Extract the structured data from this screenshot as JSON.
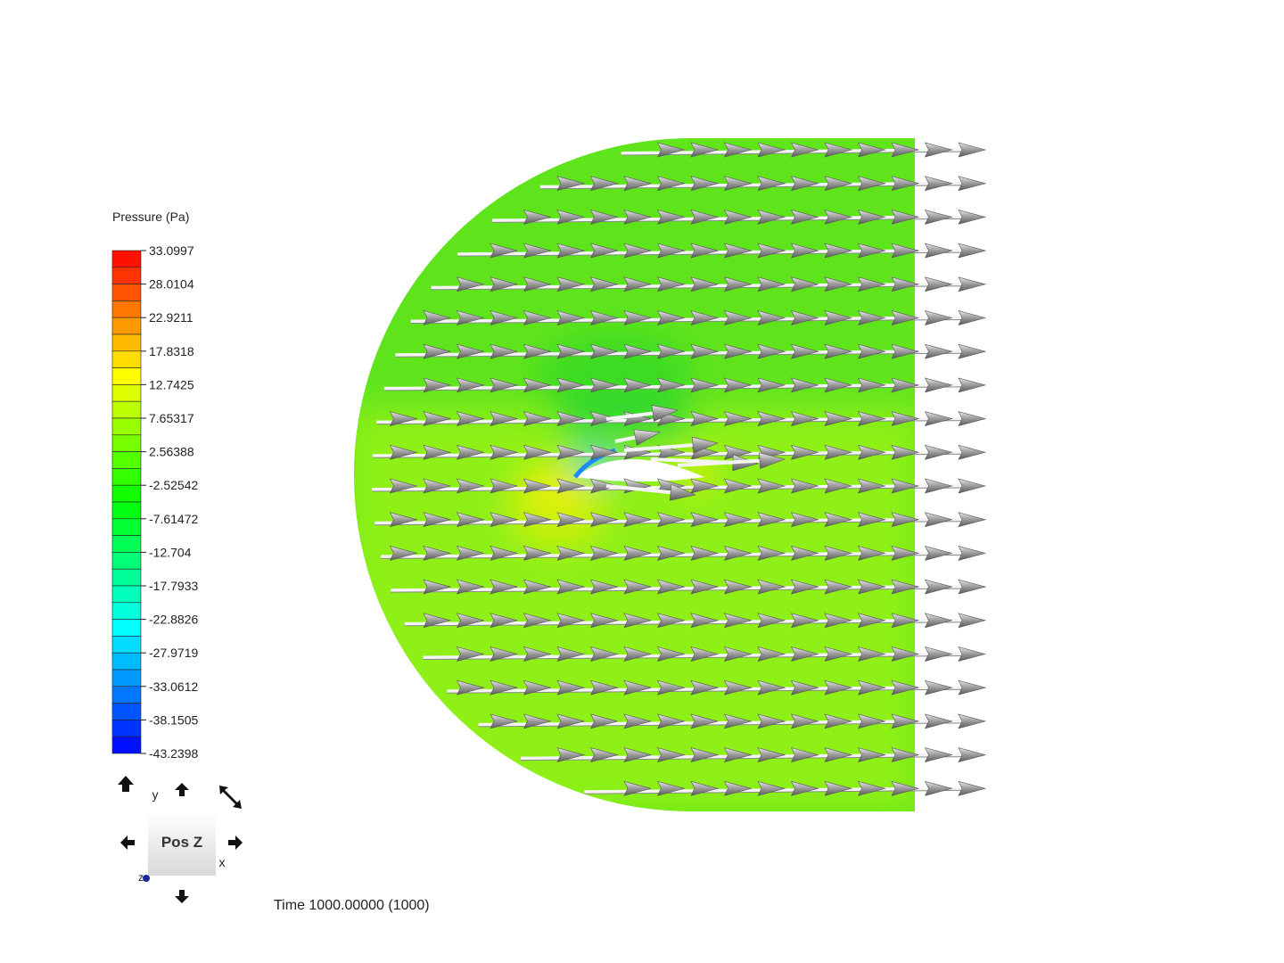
{
  "legend": {
    "title": "Pressure (Pa)",
    "labels": [
      "33.0997",
      "28.0104",
      "22.9211",
      "17.8318",
      "12.7425",
      "7.65317",
      "2.56388",
      "-2.52542",
      "-7.61472",
      "-12.704",
      "-17.7933",
      "-22.8826",
      "-27.9719",
      "-33.0612",
      "-38.1505",
      "-43.2398"
    ]
  },
  "orientation": {
    "view": "Pos Z",
    "y_axis": "y",
    "x_axis": "x",
    "z_axis": "z"
  },
  "status": {
    "time": "Time 1000.00000 (1000)"
  }
}
